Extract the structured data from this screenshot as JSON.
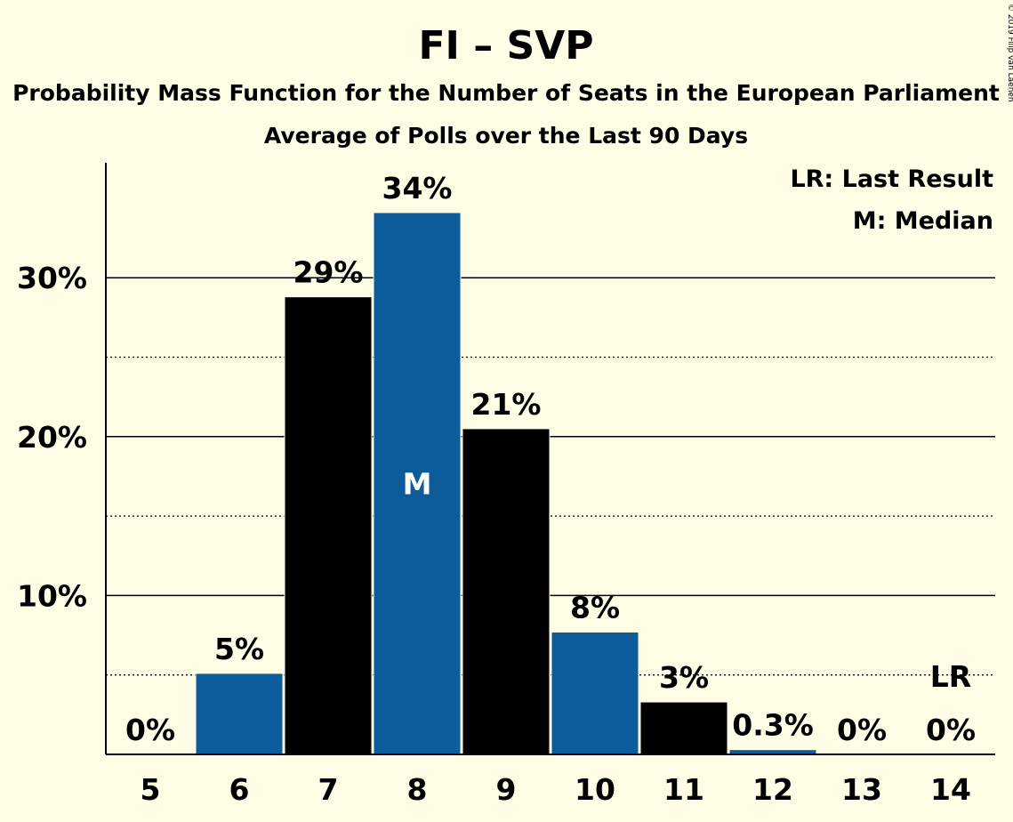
{
  "chart_data": {
    "type": "bar",
    "title": "FI – SVP",
    "subtitle": "Probability Mass Function for the Number of Seats in the European Parliament",
    "subtitle2": "Average of Polls over the Last 90 Days",
    "categories": [
      "5",
      "6",
      "7",
      "8",
      "9",
      "10",
      "11",
      "12",
      "13",
      "14"
    ],
    "values": [
      0,
      5.1,
      28.8,
      34.1,
      20.5,
      7.7,
      3.3,
      0.3,
      0,
      0
    ],
    "value_labels": [
      "0%",
      "5%",
      "29%",
      "34%",
      "21%",
      "8%",
      "3%",
      "0.3%",
      "0%",
      "0%"
    ],
    "bar_colors": [
      "#0C5C9C",
      "#0C5C9C",
      "#000000",
      "#0C5C9C",
      "#000000",
      "#0C5C9C",
      "#000000",
      "#0C5C9C",
      "#0C5C9C",
      "#0C5C9C"
    ],
    "ylim": [
      0,
      37
    ],
    "yticks": [
      10,
      20,
      30
    ],
    "ytick_labels": [
      "10%",
      "20%",
      "30%"
    ],
    "minor_gridlines": [
      5,
      15,
      25
    ],
    "median_index": 3,
    "median_marker": "M",
    "last_result_index": 9,
    "last_result_marker": "LR",
    "legend": [
      "LR: Last Result",
      "M: Median"
    ],
    "legend_position": "top-right",
    "credit": "© 2019 Filip van Laenen"
  },
  "colors": {
    "background": "#FFFDE6",
    "blue": "#0C5C9C",
    "black": "#000000"
  }
}
